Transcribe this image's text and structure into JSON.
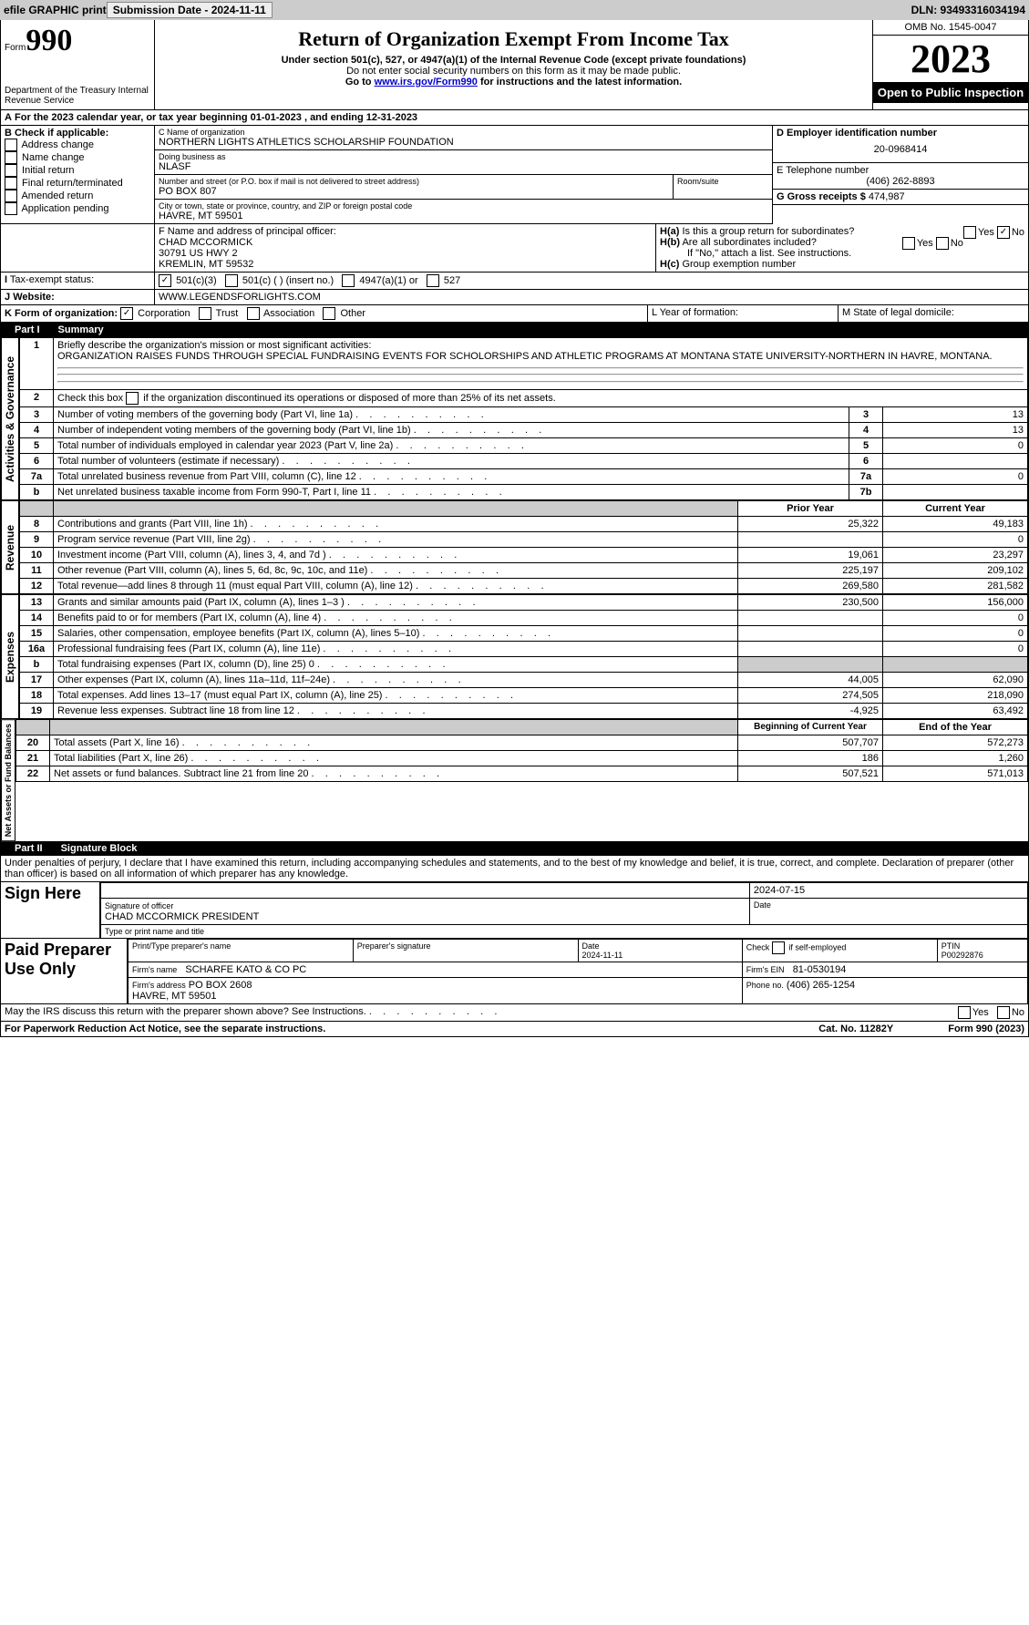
{
  "top": {
    "efile": "efile GRAPHIC print",
    "submission": "Submission Date - 2024-11-11",
    "dln": "DLN: 93493316034194"
  },
  "header": {
    "form_label": "Form",
    "form_no": "990",
    "dept": "Department of the Treasury Internal Revenue Service",
    "title": "Return of Organization Exempt From Income Tax",
    "subtitle": "Under section 501(c), 527, or 4947(a)(1) of the Internal Revenue Code (except private foundations)",
    "priv": "Do not enter social security numbers on this form as it may be made public.",
    "instr_pre": "Go to ",
    "instr_link": "www.irs.gov/Form990",
    "instr_post": " for instructions and the latest information.",
    "omb": "OMB No. 1545-0047",
    "year": "2023",
    "inspect": "Open to Public Inspection"
  },
  "A": {
    "text": "For the 2023 calendar year, or tax year beginning 01-01-2023",
    "ending": ", and ending 12-31-2023"
  },
  "B": {
    "label": "B Check if applicable:",
    "opts": [
      "Address change",
      "Name change",
      "Initial return",
      "Final return/terminated",
      "Amended return",
      "Application pending"
    ]
  },
  "C": {
    "name_label": "C Name of organization",
    "name": "NORTHERN LIGHTS ATHLETICS SCHOLARSHIP FOUNDATION",
    "dba_label": "Doing business as",
    "dba": "NLASF",
    "street_label": "Number and street (or P.O. box if mail is not delivered to street address)",
    "room_label": "Room/suite",
    "street": "PO BOX 807",
    "city_label": "City or town, state or province, country, and ZIP or foreign postal code",
    "city": "HAVRE, MT  59501"
  },
  "D": {
    "label": "D Employer identification number",
    "ein": "20-0968414"
  },
  "E": {
    "label": "E Telephone number",
    "phone": "(406) 262-8893"
  },
  "G": {
    "label": "G Gross receipts $",
    "val": "474,987"
  },
  "F": {
    "label": "F Name and address of principal officer:",
    "name": "CHAD MCCORMICK",
    "street": "30791 US HWY 2",
    "city": "KREMLIN, MT  59532"
  },
  "H": {
    "a": "Is this a group return for subordinates?",
    "b": "Are all subordinates included?",
    "b_note": "If \"No,\" attach a list. See instructions.",
    "c": "Group exemption number",
    "yes": "Yes",
    "no": "No"
  },
  "I": {
    "label": "Tax-exempt status:",
    "opt1": "501(c)(3)",
    "opt2": "501(c) (  ) (insert no.)",
    "opt3": "4947(a)(1) or",
    "opt4": "527"
  },
  "J": {
    "label": "Website:",
    "val": "WWW.LEGENDSFORLIGHTS.COM"
  },
  "K": {
    "label": "K Form of organization:",
    "opts": [
      "Corporation",
      "Trust",
      "Association",
      "Other"
    ]
  },
  "L": {
    "label": "L Year of formation:"
  },
  "M": {
    "label": "M State of legal domicile:"
  },
  "part1": {
    "label": "Part I",
    "title": "Summary"
  },
  "summary": {
    "q1": "Briefly describe the organization's mission or most significant activities:",
    "mission": "ORGANIZATION RAISES FUNDS THROUGH SPECIAL FUNDRAISING EVENTS FOR SCHOLORSHIPS AND ATHLETIC PROGRAMS AT MONTANA STATE UNIVERSITY-NORTHERN IN HAVRE, MONTANA.",
    "q2": "Check this box",
    "q2b": "if the organization discontinued its operations or disposed of more than 25% of its net assets.",
    "rows": [
      {
        "n": "3",
        "txt": "Number of voting members of the governing body (Part VI, line 1a)",
        "box": "3",
        "val": "13"
      },
      {
        "n": "4",
        "txt": "Number of independent voting members of the governing body (Part VI, line 1b)",
        "box": "4",
        "val": "13"
      },
      {
        "n": "5",
        "txt": "Total number of individuals employed in calendar year 2023 (Part V, line 2a)",
        "box": "5",
        "val": "0"
      },
      {
        "n": "6",
        "txt": "Total number of volunteers (estimate if necessary)",
        "box": "6",
        "val": ""
      },
      {
        "n": "7a",
        "txt": "Total unrelated business revenue from Part VIII, column (C), line 12",
        "box": "7a",
        "val": "0"
      },
      {
        "n": "b",
        "txt": "Net unrelated business taxable income from Form 990-T, Part I, line 11",
        "box": "7b",
        "val": ""
      }
    ],
    "prior_hdr": "Prior Year",
    "curr_hdr": "Current Year",
    "revenue": [
      {
        "n": "8",
        "txt": "Contributions and grants (Part VIII, line 1h)",
        "p": "25,322",
        "c": "49,183"
      },
      {
        "n": "9",
        "txt": "Program service revenue (Part VIII, line 2g)",
        "p": "",
        "c": "0"
      },
      {
        "n": "10",
        "txt": "Investment income (Part VIII, column (A), lines 3, 4, and 7d )",
        "p": "19,061",
        "c": "23,297"
      },
      {
        "n": "11",
        "txt": "Other revenue (Part VIII, column (A), lines 5, 6d, 8c, 9c, 10c, and 11e)",
        "p": "225,197",
        "c": "209,102"
      },
      {
        "n": "12",
        "txt": "Total revenue—add lines 8 through 11 (must equal Part VIII, column (A), line 12)",
        "p": "269,580",
        "c": "281,582"
      }
    ],
    "expenses": [
      {
        "n": "13",
        "txt": "Grants and similar amounts paid (Part IX, column (A), lines 1–3 )",
        "p": "230,500",
        "c": "156,000"
      },
      {
        "n": "14",
        "txt": "Benefits paid to or for members (Part IX, column (A), line 4)",
        "p": "",
        "c": "0"
      },
      {
        "n": "15",
        "txt": "Salaries, other compensation, employee benefits (Part IX, column (A), lines 5–10)",
        "p": "",
        "c": "0"
      },
      {
        "n": "16a",
        "txt": "Professional fundraising fees (Part IX, column (A), line 11e)",
        "p": "",
        "c": "0"
      },
      {
        "n": "b",
        "txt": "Total fundraising expenses (Part IX, column (D), line 25) 0",
        "p": "SHADE",
        "c": "SHADE"
      },
      {
        "n": "17",
        "txt": "Other expenses (Part IX, column (A), lines 11a–11d, 11f–24e)",
        "p": "44,005",
        "c": "62,090"
      },
      {
        "n": "18",
        "txt": "Total expenses. Add lines 13–17 (must equal Part IX, column (A), line 25)",
        "p": "274,505",
        "c": "218,090"
      },
      {
        "n": "19",
        "txt": "Revenue less expenses. Subtract line 18 from line 12",
        "p": "-4,925",
        "c": "63,492"
      }
    ],
    "beg_hdr": "Beginning of Current Year",
    "end_hdr": "End of the Year",
    "net": [
      {
        "n": "20",
        "txt": "Total assets (Part X, line 16)",
        "p": "507,707",
        "c": "572,273"
      },
      {
        "n": "21",
        "txt": "Total liabilities (Part X, line 26)",
        "p": "186",
        "c": "1,260"
      },
      {
        "n": "22",
        "txt": "Net assets or fund balances. Subtract line 21 from line 20",
        "p": "507,521",
        "c": "571,013"
      }
    ]
  },
  "sides": {
    "gov": "Activities & Governance",
    "rev": "Revenue",
    "exp": "Expenses",
    "net": "Net Assets or Fund Balances"
  },
  "part2": {
    "label": "Part II",
    "title": "Signature Block",
    "decl": "Under penalties of perjury, I declare that I have examined this return, including accompanying schedules and statements, and to the best of my knowledge and belief, it is true, correct, and complete. Declaration of preparer (other than officer) is based on all information of which preparer has any knowledge."
  },
  "sign": {
    "here": "Sign Here",
    "sig": "Signature of officer",
    "name": "CHAD MCCORMICK PRESIDENT",
    "title": "Type or print name and title",
    "date_label": "Date",
    "date": "2024-07-15"
  },
  "paid": {
    "label": "Paid Preparer Use Only",
    "print_label": "Print/Type preparer's name",
    "sig_label": "Preparer's signature",
    "date_label": "Date",
    "date": "2024-11-11",
    "check_label": "Check",
    "check_if": "if self-employed",
    "ptin_label": "PTIN",
    "ptin": "P00292876",
    "firm_name_label": "Firm's name",
    "firm_name": "SCHARFE KATO & CO PC",
    "firm_ein_label": "Firm's EIN",
    "firm_ein": "81-0530194",
    "firm_addr_label": "Firm's address",
    "firm_addr": "PO BOX 2608",
    "firm_city": "HAVRE, MT  59501",
    "phone_label": "Phone no.",
    "phone": "(406) 265-1254"
  },
  "discuss": {
    "txt": "May the IRS discuss this return with the preparer shown above? See Instructions.",
    "yes": "Yes",
    "no": "No"
  },
  "footer": {
    "left": "For Paperwork Reduction Act Notice, see the separate instructions.",
    "cat": "Cat. No. 11282Y",
    "right": "Form 990 (2023)"
  }
}
